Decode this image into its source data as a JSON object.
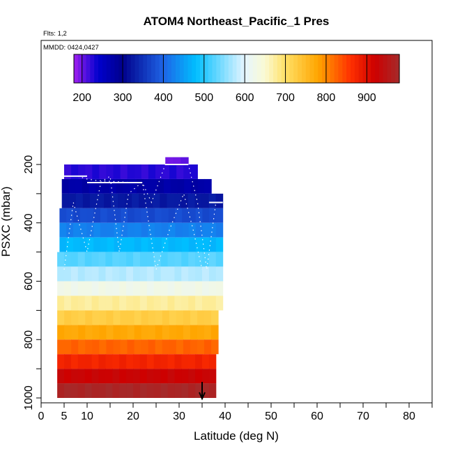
{
  "chart_data": {
    "type": "heatmap",
    "title": "ATOM4 Northeast_Pacific_1 Pres",
    "flights_label": "Flts: 1,2",
    "dates_label": "MMDD: 0424,0427",
    "xlabel": "Latitude (deg N)",
    "ylabel": "PSXC (mbar)",
    "xlim": [
      0,
      85
    ],
    "ylim": [
      1010,
      130
    ],
    "y_reversed": true,
    "x_ticks": [
      0,
      5,
      10,
      20,
      30,
      40,
      50,
      60,
      70,
      80
    ],
    "x_minor_ticks": [
      15,
      25,
      35,
      45,
      55,
      65,
      75,
      85
    ],
    "y_ticks": [
      200,
      400,
      600,
      800,
      1000
    ],
    "y_minor_ticks": [
      300,
      500,
      700,
      900
    ],
    "colorbar": {
      "min": 180,
      "max": 980,
      "ticks": [
        200,
        300,
        400,
        500,
        600,
        700,
        800,
        900
      ],
      "colors": [
        {
          "value": 180,
          "color": "#a020f0"
        },
        {
          "value": 240,
          "color": "#0000cd"
        },
        {
          "value": 300,
          "color": "#00008b"
        },
        {
          "value": 400,
          "color": "#1e64e6"
        },
        {
          "value": 480,
          "color": "#00bfff"
        },
        {
          "value": 600,
          "color": "#e6f5ff"
        },
        {
          "value": 650,
          "color": "#fafad2"
        },
        {
          "value": 700,
          "color": "#ffe066"
        },
        {
          "value": 780,
          "color": "#ffa500"
        },
        {
          "value": 860,
          "color": "#ff3000"
        },
        {
          "value": 920,
          "color": "#cd0000"
        },
        {
          "value": 980,
          "color": "#a52a2a"
        }
      ]
    },
    "bins": [
      {
        "p": 200,
        "spans": [
          [
            27,
            32
          ]
        ]
      },
      {
        "p": 225,
        "spans": [
          [
            5,
            34
          ]
        ]
      },
      {
        "p": 275,
        "spans": [
          [
            4.5,
            37
          ]
        ]
      },
      {
        "p": 325,
        "spans": [
          [
            4.5,
            39.5
          ]
        ]
      },
      {
        "p": 375,
        "spans": [
          [
            4,
            39.5
          ]
        ]
      },
      {
        "p": 425,
        "spans": [
          [
            4,
            39.5
          ]
        ]
      },
      {
        "p": 475,
        "spans": [
          [
            4,
            39.5
          ]
        ]
      },
      {
        "p": 525,
        "spans": [
          [
            3.5,
            39.5
          ]
        ]
      },
      {
        "p": 575,
        "spans": [
          [
            3.5,
            39.5
          ]
        ]
      },
      {
        "p": 625,
        "spans": [
          [
            3.5,
            39.5
          ]
        ]
      },
      {
        "p": 675,
        "spans": [
          [
            3.5,
            39.5
          ]
        ]
      },
      {
        "p": 725,
        "spans": [
          [
            3.5,
            38.5
          ]
        ]
      },
      {
        "p": 775,
        "spans": [
          [
            3.5,
            38.5
          ]
        ]
      },
      {
        "p": 825,
        "spans": [
          [
            3.5,
            38.5
          ]
        ]
      },
      {
        "p": 875,
        "spans": [
          [
            3.5,
            38
          ]
        ]
      },
      {
        "p": 925,
        "spans": [
          [
            3.5,
            38
          ]
        ]
      },
      {
        "p": 975,
        "spans": [
          [
            3.5,
            38
          ]
        ]
      }
    ],
    "arrow": {
      "x": 35,
      "y_from": 945,
      "y_to": 1000
    }
  }
}
